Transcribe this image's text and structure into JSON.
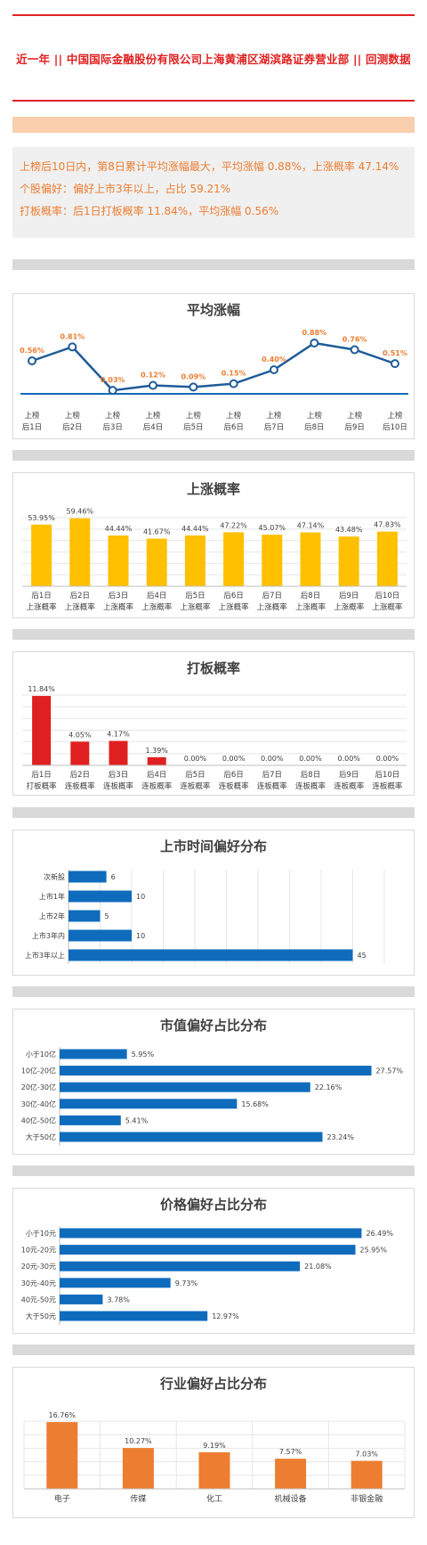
{
  "header": {
    "title": "近一年 || 中国国际金融股份有限公司上海黄浦区湖滨路证券营业部 || 回测数据"
  },
  "summary": {
    "line1": "上榜后10日内，第8日累计平均涨幅最大，平均涨幅 0.88%，上涨概率 47.14%",
    "line2": "个股偏好：偏好上市3年以上，占比 59.21%",
    "line3": "打板概率：后1日打板概率 11.84%，平均涨幅 0.56%"
  },
  "colors": {
    "accent_red": "#e02020",
    "orange_text": "#ed7d31",
    "line_blue": "#1f5c99",
    "bar_yellow": "#ffc000",
    "bar_red": "#e02020",
    "bar_blue": "#0f6cbd",
    "bar_orange": "#ed7d31"
  },
  "chart_data": [
    {
      "id": "avg-rise",
      "type": "line",
      "title": "平均涨幅",
      "categories": [
        [
          "上榜",
          "后1日"
        ],
        [
          "上榜",
          "后2日"
        ],
        [
          "上榜",
          "后3日"
        ],
        [
          "上榜",
          "后4日"
        ],
        [
          "上榜",
          "后5日"
        ],
        [
          "上榜",
          "后6日"
        ],
        [
          "上榜",
          "后7日"
        ],
        [
          "上榜",
          "后8日"
        ],
        [
          "上榜",
          "后9日"
        ],
        [
          "上榜",
          "后10日"
        ]
      ],
      "values": [
        0.56,
        0.81,
        0.03,
        0.12,
        0.09,
        0.15,
        0.4,
        0.88,
        0.76,
        0.51
      ],
      "labels": [
        "0.56%",
        "0.81%",
        "0.03%",
        "0.12%",
        "0.09%",
        "0.15%",
        "0.40%",
        "0.88%",
        "0.76%",
        "0.51%"
      ],
      "ylim": [
        0,
        0.88
      ],
      "grid": false
    },
    {
      "id": "up-prob",
      "type": "bar",
      "title": "上涨概率",
      "categories": [
        [
          "后1日",
          "上涨概率"
        ],
        [
          "后2日",
          "上涨概率"
        ],
        [
          "后3日",
          "上涨概率"
        ],
        [
          "后4日",
          "上涨概率"
        ],
        [
          "后5日",
          "上涨概率"
        ],
        [
          "后6日",
          "上涨概率"
        ],
        [
          "后7日",
          "上涨概率"
        ],
        [
          "后8日",
          "上涨概率"
        ],
        [
          "后9日",
          "上涨概率"
        ],
        [
          "后10日",
          "上涨概率"
        ]
      ],
      "values": [
        53.95,
        59.46,
        44.44,
        41.67,
        44.44,
        47.22,
        45.07,
        47.14,
        43.48,
        47.83
      ],
      "labels": [
        "53.95%",
        "59.46%",
        "44.44%",
        "41.67%",
        "44.44%",
        "47.22%",
        "45.07%",
        "47.14%",
        "43.48%",
        "47.83%"
      ],
      "ylim": [
        0,
        60
      ],
      "grid": true
    },
    {
      "id": "limit-prob",
      "type": "bar",
      "title": "打板概率",
      "categories": [
        [
          "后1日",
          "打板概率"
        ],
        [
          "后2日",
          "连板概率"
        ],
        [
          "后3日",
          "连板概率"
        ],
        [
          "后4日",
          "连板概率"
        ],
        [
          "后5日",
          "连板概率"
        ],
        [
          "后6日",
          "连板概率"
        ],
        [
          "后7日",
          "连板概率"
        ],
        [
          "后8日",
          "连板概率"
        ],
        [
          "后9日",
          "连板概率"
        ],
        [
          "后10日",
          "连板概率"
        ]
      ],
      "values": [
        11.84,
        4.05,
        4.17,
        1.39,
        0,
        0,
        0,
        0,
        0,
        0
      ],
      "labels": [
        "11.84%",
        "4.05%",
        "4.17%",
        "1.39%",
        "0.00%",
        "0.00%",
        "0.00%",
        "0.00%",
        "0.00%",
        "0.00%"
      ],
      "ylim": [
        0,
        12
      ],
      "grid": true
    },
    {
      "id": "listing-time",
      "type": "bar",
      "orientation": "horizontal",
      "title": "上市时间偏好分布",
      "categories": [
        "次新股",
        "上市1年",
        "上市2年",
        "上市3年内",
        "上市3年以上"
      ],
      "values": [
        6,
        10,
        5,
        10,
        45
      ],
      "labels": [
        "6",
        "10",
        "5",
        "10",
        "45"
      ],
      "xlim": [
        0,
        50
      ],
      "grid": true
    },
    {
      "id": "market-cap",
      "type": "bar",
      "orientation": "horizontal",
      "title": "市值偏好占比分布",
      "categories": [
        "小于10亿",
        "10亿-20亿",
        "20亿-30亿",
        "30亿-40亿",
        "40亿-50亿",
        "大于50亿"
      ],
      "values": [
        5.95,
        27.57,
        22.16,
        15.68,
        5.41,
        23.24
      ],
      "labels": [
        "5.95%",
        "27.57%",
        "22.16%",
        "15.68%",
        "5.41%",
        "23.24%"
      ],
      "xlim": [
        0,
        28
      ],
      "grid": false
    },
    {
      "id": "price",
      "type": "bar",
      "orientation": "horizontal",
      "title": "价格偏好占比分布",
      "categories": [
        "小于10元",
        "10元-20元",
        "20元-30元",
        "30元-40元",
        "40元-50元",
        "大于50元"
      ],
      "values": [
        26.49,
        25.95,
        21.08,
        9.73,
        3.78,
        12.97
      ],
      "labels": [
        "26.49%",
        "25.95%",
        "21.08%",
        "9.73%",
        "3.78%",
        "12.97%"
      ],
      "xlim": [
        0,
        27
      ],
      "grid": false
    },
    {
      "id": "industry",
      "type": "bar",
      "title": "行业偏好占比分布",
      "categories": [
        "电子",
        "传媒",
        "化工",
        "机械设备",
        "非银金融"
      ],
      "values": [
        16.76,
        10.27,
        9.19,
        7.57,
        7.03
      ],
      "labels": [
        "16.76%",
        "10.27%",
        "9.19%",
        "7.57%",
        "7.03%"
      ],
      "ylim": [
        0,
        17
      ],
      "grid": true
    }
  ]
}
